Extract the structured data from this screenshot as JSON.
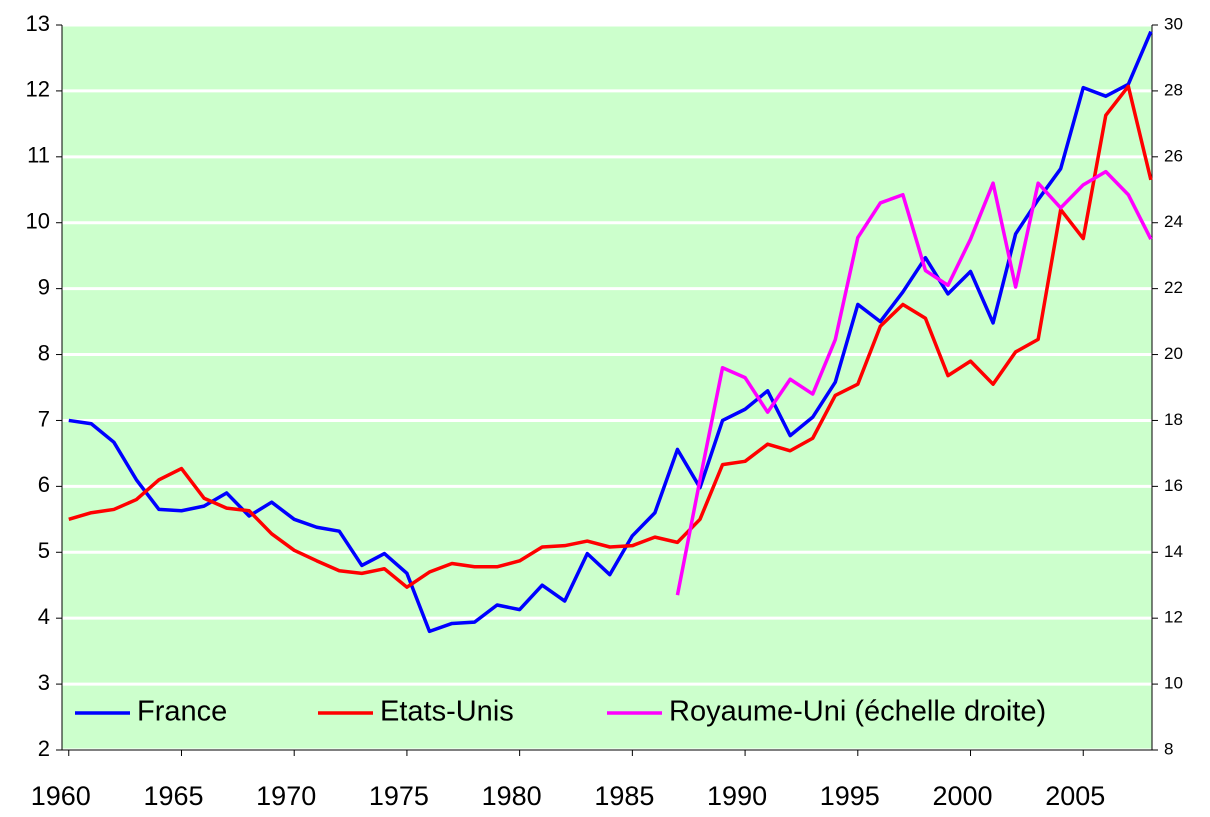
{
  "chart_data": {
    "type": "line",
    "x": [
      1960,
      1961,
      1962,
      1963,
      1964,
      1965,
      1966,
      1967,
      1968,
      1969,
      1970,
      1971,
      1972,
      1973,
      1974,
      1975,
      1976,
      1977,
      1978,
      1979,
      1980,
      1981,
      1982,
      1983,
      1984,
      1985,
      1986,
      1987,
      1988,
      1989,
      1990,
      1991,
      1992,
      1993,
      1994,
      1995,
      1996,
      1997,
      1998,
      1999,
      2000,
      2001,
      2002,
      2003,
      2004,
      2005,
      2006,
      2007,
      2008
    ],
    "xlim": [
      1959.7,
      2008.05
    ],
    "xticks": [
      1960,
      1965,
      1970,
      1975,
      1980,
      1985,
      1990,
      1995,
      2000,
      2005
    ],
    "ylim": [
      2,
      13
    ],
    "yticks": [
      2,
      3,
      4,
      5,
      6,
      7,
      8,
      9,
      10,
      11,
      12,
      13
    ],
    "y2lim": [
      8,
      30
    ],
    "y2ticks": [
      8,
      10,
      12,
      14,
      16,
      18,
      20,
      22,
      24,
      26,
      28,
      30
    ],
    "grid": true,
    "legend": "bottom",
    "series": [
      {
        "name": "France",
        "color": "#0000ff",
        "values": [
          7.0,
          6.95,
          6.67,
          6.1,
          5.65,
          5.63,
          5.7,
          5.9,
          5.55,
          5.76,
          5.5,
          5.38,
          5.32,
          4.8,
          4.98,
          4.68,
          3.8,
          3.92,
          3.94,
          4.2,
          4.13,
          4.5,
          4.26,
          4.98,
          4.66,
          5.25,
          5.6,
          6.56,
          5.98,
          7.0,
          7.17,
          7.45,
          6.77,
          7.05,
          7.58,
          8.76,
          8.5,
          8.95,
          9.47,
          8.92,
          9.26,
          8.48,
          9.83,
          10.35,
          10.82,
          12.05,
          11.92,
          12.1,
          12.9
        ]
      },
      {
        "name": "Etats-Unis",
        "color": "#ff0000",
        "values": [
          5.5,
          5.6,
          5.65,
          5.8,
          6.1,
          6.27,
          5.82,
          5.67,
          5.63,
          5.28,
          5.03,
          4.87,
          4.72,
          4.68,
          4.75,
          4.47,
          4.7,
          4.83,
          4.78,
          4.78,
          4.87,
          5.08,
          5.1,
          5.17,
          5.08,
          5.1,
          5.23,
          5.15,
          5.5,
          6.33,
          6.38,
          6.64,
          6.54,
          6.73,
          7.38,
          7.55,
          8.43,
          8.76,
          8.55,
          7.68,
          7.9,
          7.55,
          8.04,
          8.23,
          10.2,
          9.76,
          11.63,
          12.07,
          10.65
        ]
      },
      {
        "name": "Royaume-Uni (échelle droite)",
        "color": "#ff00ff",
        "axis": "y2",
        "values": [
          null,
          null,
          null,
          null,
          null,
          null,
          null,
          null,
          null,
          null,
          null,
          null,
          null,
          null,
          null,
          null,
          null,
          null,
          null,
          null,
          null,
          null,
          null,
          null,
          null,
          null,
          null,
          12.7,
          16.2,
          19.6,
          19.3,
          18.25,
          19.25,
          18.8,
          20.45,
          23.55,
          24.6,
          24.85,
          22.55,
          22.1,
          23.5,
          25.2,
          22.05,
          25.2,
          24.45,
          25.15,
          25.55,
          24.85,
          23.5
        ]
      }
    ]
  }
}
